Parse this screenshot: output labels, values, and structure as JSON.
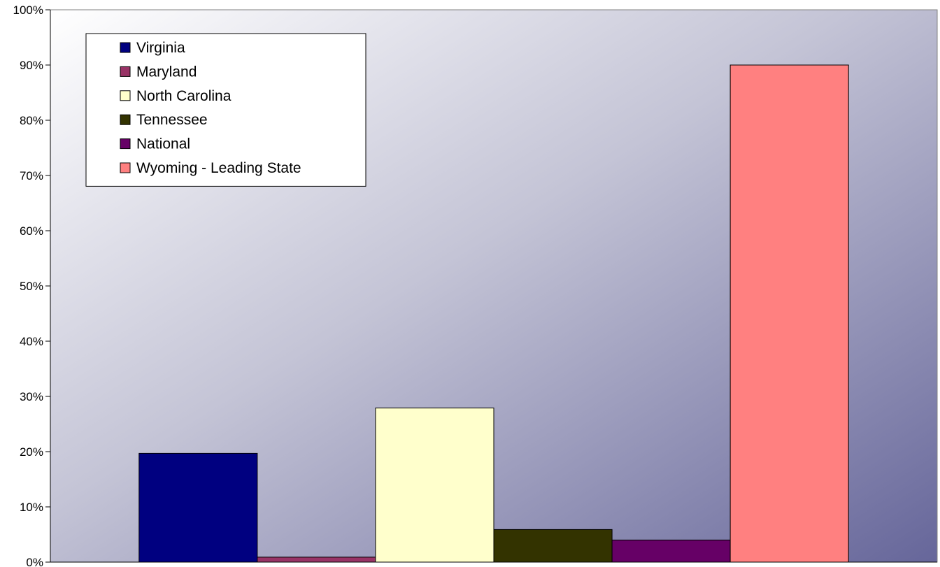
{
  "chart_data": {
    "type": "bar",
    "title": "",
    "xlabel": "",
    "ylabel": "",
    "ylim": [
      0,
      1
    ],
    "y_ticks": [
      "0%",
      "10%",
      "20%",
      "30%",
      "40%",
      "50%",
      "60%",
      "70%",
      "80%",
      "90%",
      "100%"
    ],
    "grid": false,
    "legend_position": "top-left",
    "background": "diagonal gradient from white (top-left) to slate blue (bottom-right)",
    "series": [
      {
        "name": "Virginia",
        "value": 0.197,
        "color": "#000080"
      },
      {
        "name": "Maryland",
        "value": 0.009,
        "color": "#993366"
      },
      {
        "name": "North Carolina",
        "value": 0.279,
        "color": "#FFFFCC"
      },
      {
        "name": "Tennessee",
        "value": 0.059,
        "color": "#333300"
      },
      {
        "name": "National",
        "value": 0.04,
        "color": "#660066"
      },
      {
        "name": "Wyoming - Leading State",
        "value": 0.9,
        "color": "#FF8080"
      }
    ]
  }
}
